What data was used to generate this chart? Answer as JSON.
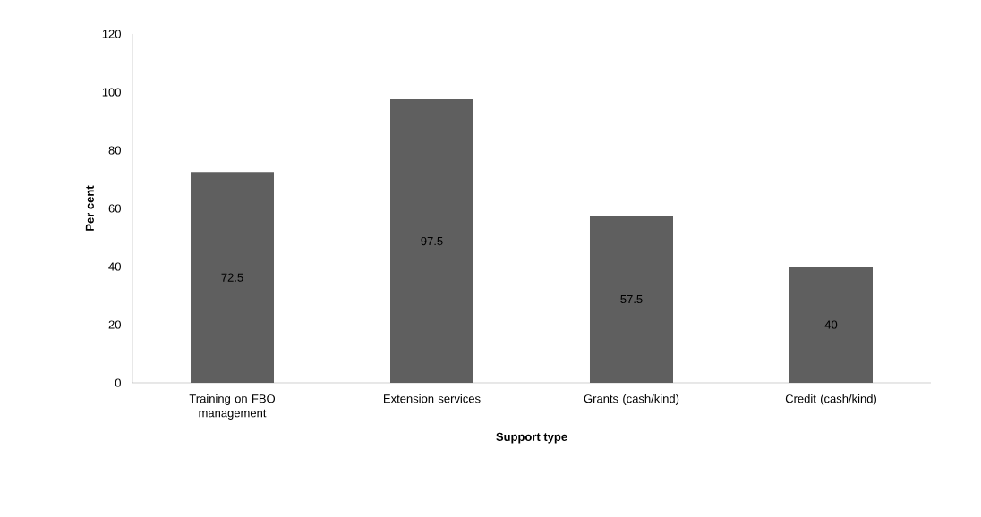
{
  "chart_data": {
    "type": "bar",
    "xlabel": "Support type",
    "ylabel": "Per cent",
    "categories": [
      "Training on FBO management",
      "Extension services",
      "Grants (cash/kind)",
      "Credit (cash/kind)"
    ],
    "values": [
      72.5,
      97.5,
      57.5,
      40
    ],
    "color": "#5f5f5f",
    "ylim": [
      0,
      120
    ],
    "yticks": [
      0,
      20,
      40,
      60,
      80,
      100,
      120
    ],
    "data_labels": true,
    "grid": false
  }
}
